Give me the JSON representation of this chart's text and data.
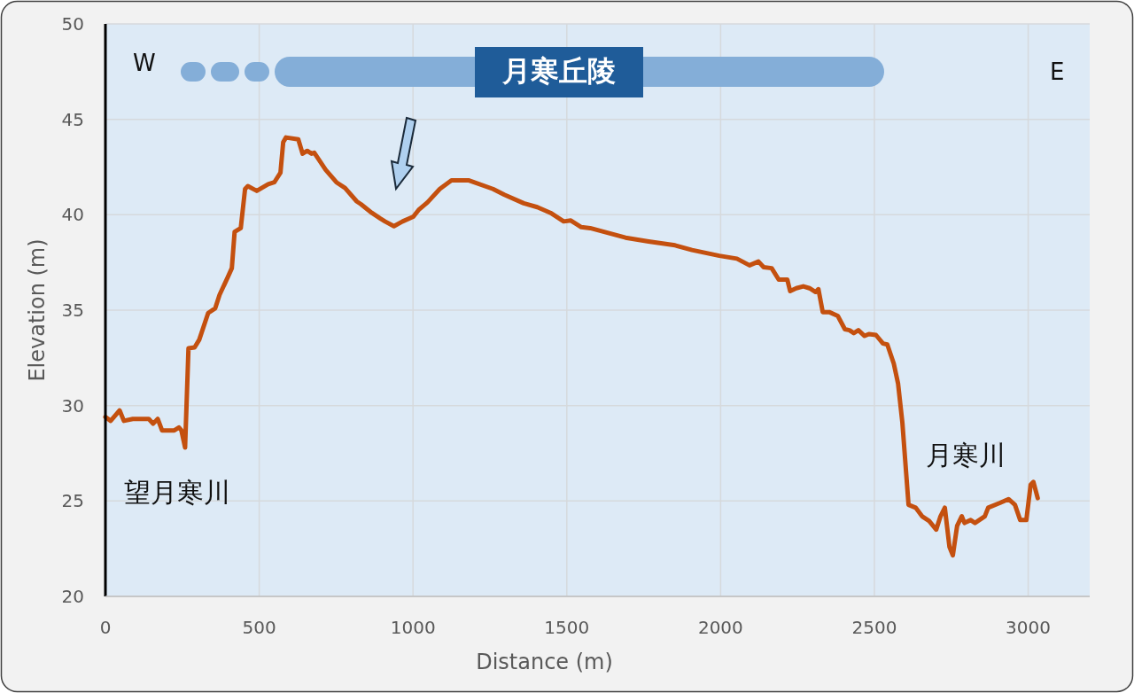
{
  "chart_data": {
    "type": "line",
    "xlabel": "Distance (m)",
    "ylabel": "Elevation (m)",
    "xlim": [
      0,
      3200
    ],
    "xticks": [
      0,
      500,
      1000,
      1500,
      2000,
      2500,
      3000
    ],
    "ylim": [
      20,
      50
    ],
    "yticks": [
      20,
      25,
      30,
      35,
      40,
      45,
      50
    ],
    "grid": true,
    "annotations": [
      "W",
      "E",
      "月寒丘陵",
      "望月寒川",
      "月寒川"
    ],
    "series": [
      {
        "color": "#c4500f",
        "x": [
          0,
          17,
          46,
          60,
          89,
          141,
          155,
          170,
          184,
          224,
          239,
          247,
          259,
          270,
          290,
          305,
          334,
          357,
          371,
          397,
          411,
          420,
          440,
          454,
          463,
          492,
          529,
          549,
          569,
          578,
          587,
          627,
          641,
          656,
          670,
          679,
          716,
          751,
          779,
          817,
          831,
          866,
          894,
          909,
          938,
          966,
          1001,
          1018,
          1047,
          1087,
          1125,
          1182,
          1260,
          1297,
          1360,
          1404,
          1447,
          1490,
          1513,
          1547,
          1576,
          1691,
          1766,
          1852,
          1907,
          1996,
          2053,
          2094,
          2123,
          2140,
          2166,
          2189,
          2217,
          2226,
          2246,
          2269,
          2289,
          2309,
          2318,
          2332,
          2353,
          2381,
          2404,
          2419,
          2433,
          2448,
          2468,
          2482,
          2505,
          2528,
          2542,
          2563,
          2577,
          2591,
          2611,
          2634,
          2655,
          2678,
          2701,
          2715,
          2729,
          2744,
          2755,
          2769,
          2784,
          2793,
          2813,
          2827,
          2859,
          2870,
          2908,
          2936,
          2957,
          2974,
          2994,
          3008,
          3017,
          3031
        ],
        "values": [
          29.4,
          29.2,
          29.75,
          29.2,
          29.3,
          29.3,
          29.05,
          29.3,
          28.7,
          28.7,
          28.85,
          28.7,
          27.8,
          33.0,
          33.05,
          33.45,
          34.85,
          35.1,
          35.8,
          36.7,
          37.2,
          39.1,
          39.3,
          41.35,
          41.5,
          41.25,
          41.6,
          41.7,
          42.2,
          43.8,
          44.05,
          43.95,
          43.2,
          43.35,
          43.2,
          43.25,
          42.35,
          41.7,
          41.4,
          40.7,
          40.55,
          40.1,
          39.8,
          39.65,
          39.4,
          39.65,
          39.9,
          40.25,
          40.65,
          41.35,
          41.8,
          41.8,
          41.35,
          41.05,
          40.6,
          40.4,
          40.1,
          39.65,
          39.7,
          39.35,
          39.3,
          38.8,
          38.6,
          38.4,
          38.15,
          37.85,
          37.7,
          37.35,
          37.55,
          37.25,
          37.2,
          36.6,
          36.6,
          36.0,
          36.15,
          36.25,
          36.15,
          35.95,
          36.1,
          34.9,
          34.9,
          34.7,
          34.0,
          33.95,
          33.8,
          33.95,
          33.65,
          33.75,
          33.7,
          33.25,
          33.2,
          32.2,
          31.15,
          29.1,
          24.8,
          24.65,
          24.2,
          23.95,
          23.5,
          24.2,
          24.65,
          22.6,
          22.15,
          23.7,
          24.2,
          23.85,
          24.0,
          23.85,
          24.2,
          24.65,
          24.9,
          25.1,
          24.8,
          24.0,
          24.0,
          25.85,
          26.0,
          25.15
        ]
      }
    ]
  }
}
